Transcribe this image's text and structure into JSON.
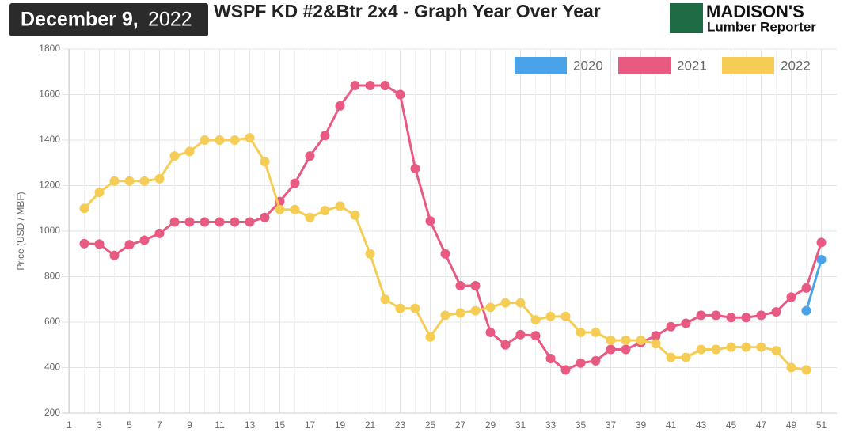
{
  "header": {
    "date": "December 9,",
    "year": "2022",
    "logo_top": "MADISON'S",
    "logo_bottom": "Lumber Reporter"
  },
  "chart_data": {
    "type": "line",
    "title": "WSPF KD #2&Btr 2x4 - Graph Year Over Year",
    "y_label": "Price (USD / MBF)",
    "categories": [
      1,
      null,
      3,
      null,
      5,
      null,
      7,
      null,
      9,
      null,
      11,
      null,
      13,
      null,
      15,
      null,
      17,
      null,
      19,
      null,
      21,
      null,
      23,
      null,
      25,
      null,
      27,
      null,
      29,
      null,
      31,
      null,
      33,
      null,
      35,
      null,
      37,
      null,
      39,
      null,
      41,
      null,
      43,
      null,
      45,
      null,
      47,
      null,
      49,
      null,
      51
    ],
    "ylim": [
      200,
      1800
    ],
    "yticks": [
      200,
      400,
      600,
      800,
      1000,
      1200,
      1400,
      1600,
      1800
    ],
    "grid": true,
    "legend": "top-right",
    "series": [
      {
        "name": "2020",
        "color": "#4aa3e8",
        "values": [
          null,
          null,
          null,
          null,
          null,
          null,
          null,
          null,
          null,
          null,
          null,
          null,
          null,
          null,
          null,
          null,
          null,
          null,
          null,
          null,
          null,
          null,
          null,
          null,
          null,
          null,
          null,
          null,
          null,
          null,
          null,
          null,
          null,
          null,
          null,
          null,
          null,
          null,
          null,
          null,
          null,
          null,
          null,
          null,
          null,
          null,
          null,
          null,
          null,
          650,
          875
        ]
      },
      {
        "name": "2021",
        "color": "#e85a82",
        "values": [
          null,
          945,
          943,
          893,
          940,
          960,
          990,
          1040,
          1040,
          1040,
          1040,
          1040,
          1040,
          1060,
          1130,
          1210,
          1330,
          1420,
          1550,
          1640,
          1640,
          1640,
          1600,
          1275,
          1045,
          900,
          760,
          760,
          555,
          500,
          545,
          540,
          440,
          390,
          420,
          430,
          480,
          480,
          510,
          540,
          580,
          595,
          630,
          630,
          620,
          620,
          630,
          645,
          710,
          750,
          950
        ]
      },
      {
        "name": "2022",
        "color": "#f5cd55",
        "values": [
          null,
          1100,
          1170,
          1220,
          1220,
          1220,
          1230,
          1330,
          1350,
          1400,
          1400,
          1400,
          1410,
          1305,
          1095,
          1095,
          1060,
          1090,
          1110,
          1070,
          900,
          700,
          660,
          660,
          535,
          630,
          640,
          650,
          665,
          685,
          685,
          610,
          625,
          625,
          555,
          555,
          520,
          520,
          520,
          505,
          445,
          445,
          480,
          480,
          490,
          490,
          490,
          475,
          400,
          390,
          null
        ]
      }
    ]
  }
}
